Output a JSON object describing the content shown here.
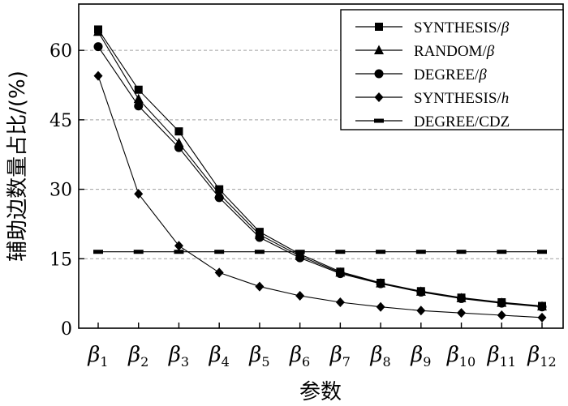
{
  "chart_data": {
    "type": "line",
    "xlabel": "参数",
    "ylabel": "辅助边数量占比/(%)",
    "ylim": [
      0,
      70
    ],
    "yticks": [
      0,
      15,
      30,
      45,
      60
    ],
    "grid": "horizontal-dashed",
    "legend_position": "top-right",
    "categories": [
      {
        "base": "β",
        "sub": "1"
      },
      {
        "base": "β",
        "sub": "2"
      },
      {
        "base": "β",
        "sub": "3"
      },
      {
        "base": "β",
        "sub": "4"
      },
      {
        "base": "β",
        "sub": "5"
      },
      {
        "base": "β",
        "sub": "6"
      },
      {
        "base": "β",
        "sub": "7"
      },
      {
        "base": "β",
        "sub": "8"
      },
      {
        "base": "β",
        "sub": "9"
      },
      {
        "base": "β",
        "sub": "10"
      },
      {
        "base": "β",
        "sub": "11"
      },
      {
        "base": "β",
        "sub": "12"
      }
    ],
    "series": [
      {
        "name": "SYNTHESIS/",
        "name_italic": "β",
        "marker": "square",
        "values": [
          64.5,
          51.5,
          42.5,
          30.0,
          20.8,
          16.0,
          12.2,
          9.8,
          8.0,
          6.6,
          5.6,
          4.8
        ]
      },
      {
        "name": "RANDOM/",
        "name_italic": "β",
        "marker": "triangle",
        "values": [
          64.0,
          49.5,
          40.0,
          29.0,
          20.2,
          15.6,
          12.0,
          9.7,
          7.9,
          6.5,
          5.5,
          4.7
        ]
      },
      {
        "name": "DEGREE/",
        "name_italic": "β",
        "marker": "circle",
        "values": [
          60.8,
          48.0,
          39.0,
          28.2,
          19.6,
          15.2,
          11.8,
          9.6,
          7.8,
          6.4,
          5.4,
          4.6
        ]
      },
      {
        "name": "SYNTHESIS/",
        "name_italic": "h",
        "marker": "diamond",
        "values": [
          54.5,
          29.0,
          17.8,
          12.0,
          9.0,
          7.0,
          5.6,
          4.6,
          3.8,
          3.3,
          2.8,
          2.3
        ]
      },
      {
        "name": "DEGREE/CDZ",
        "name_italic": "",
        "marker": "dash",
        "values": [
          16.5,
          16.5,
          16.5,
          16.5,
          16.5,
          16.5,
          16.5,
          16.5,
          16.5,
          16.5,
          16.5,
          16.5
        ]
      }
    ]
  }
}
